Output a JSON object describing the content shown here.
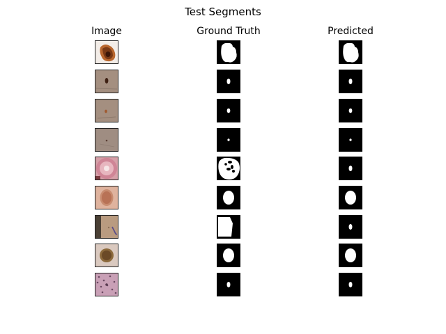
{
  "figure": {
    "title": "Test Segments"
  },
  "chart_data": {
    "type": "image-grid",
    "title": "Test Segments",
    "columns": [
      "Image",
      "Ground Truth",
      "Predicted"
    ],
    "rows": 9,
    "axes_visible": false,
    "colors": {
      "mask_background": "#000000",
      "mask_foreground": "#ffffff",
      "frame": "#222222"
    },
    "samples": [
      {
        "image": {
          "skin": "#f3ede8",
          "lesion": "#7a3a16",
          "lesion_shape": "irregular-dark-blob",
          "extras": [
            "dark-center",
            "orange-halo"
          ]
        },
        "ground_truth": {
          "shape": "large-irregular-blob",
          "relative_area": 0.43
        },
        "predicted": {
          "shape": "large-irregular-blob",
          "relative_area": 0.4
        }
      },
      {
        "image": {
          "skin": "#a48f80",
          "lesion": "#3f2113",
          "lesion_shape": "small-oval",
          "extras": [
            "horizontal-streak"
          ]
        },
        "ground_truth": {
          "shape": "small-oval",
          "relative_area": 0.04
        },
        "predicted": {
          "shape": "small-oval",
          "relative_area": 0.03
        }
      },
      {
        "image": {
          "skin": "#a48f80",
          "lesion": "#a05a2f",
          "lesion_shape": "tiny-spot",
          "extras": [
            "diagonal-streak"
          ]
        },
        "ground_truth": {
          "shape": "tiny-oval",
          "relative_area": 0.03
        },
        "predicted": {
          "shape": "tiny-oval",
          "relative_area": 0.025
        }
      },
      {
        "image": {
          "skin": "#9f8d82",
          "lesion": "#5a3e34",
          "lesion_shape": "dot",
          "extras": [
            "short-streak"
          ]
        },
        "ground_truth": {
          "shape": "dot",
          "relative_area": 0.015
        },
        "predicted": {
          "shape": "dot",
          "relative_area": 0.012
        }
      },
      {
        "image": {
          "skin": "#d6a0a8",
          "lesion": "#c97d8c",
          "lesion_shape": "large-pink-ring",
          "extras": [
            "bright-center"
          ]
        },
        "ground_truth": {
          "shape": "large-irregular-with-holes",
          "relative_area": 0.55
        },
        "predicted": {
          "shape": "small-oval",
          "relative_area": 0.03
        }
      },
      {
        "image": {
          "skin": "#dfb39e",
          "lesion": "#b87256",
          "lesion_shape": "medium-oval",
          "extras": []
        },
        "ground_truth": {
          "shape": "medium-oval",
          "relative_area": 0.28
        },
        "predicted": {
          "shape": "medium-oval",
          "relative_area": 0.24
        }
      },
      {
        "image": {
          "skin": "#b99b80",
          "lesion": "#4c4f6a",
          "lesion_shape": "edge-mark",
          "extras": [
            "dark-left-border",
            "purple-ink"
          ]
        },
        "ground_truth": {
          "shape": "large-trapezoid",
          "relative_area": 0.45
        },
        "predicted": {
          "shape": "small-oval",
          "relative_area": 0.03
        }
      },
      {
        "image": {
          "skin": "#dac9bf",
          "lesion": "#6b4a27",
          "lesion_shape": "medium-round",
          "extras": [
            "brown-center"
          ]
        },
        "ground_truth": {
          "shape": "medium-oval",
          "relative_area": 0.22
        },
        "predicted": {
          "shape": "medium-oval",
          "relative_area": 0.25
        }
      },
      {
        "image": {
          "skin": "#c9a0b6",
          "lesion": "#6c4a63",
          "lesion_shape": "speckled",
          "extras": [
            "many-dots"
          ]
        },
        "ground_truth": {
          "shape": "small-oval",
          "relative_area": 0.04
        },
        "predicted": {
          "shape": "small-oval",
          "relative_area": 0.03
        }
      }
    ]
  }
}
